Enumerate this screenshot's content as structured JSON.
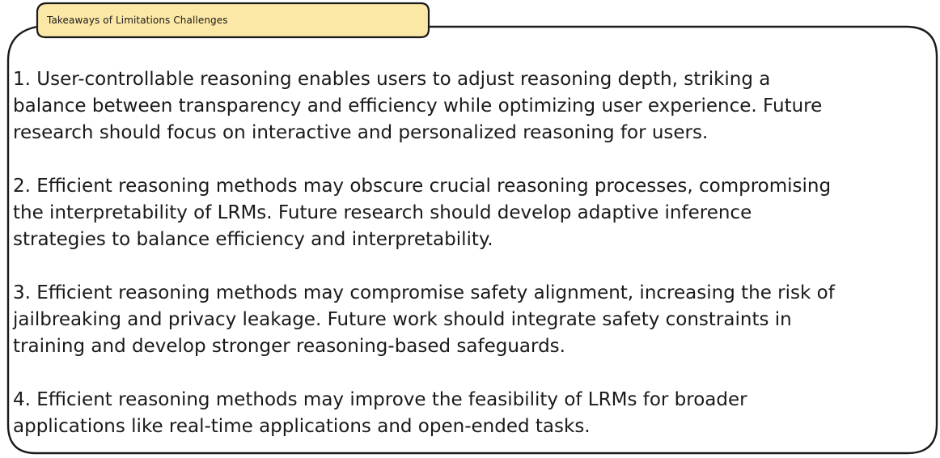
{
  "title": "Takeaways of Limitations Challenges",
  "items": [
    {
      "lines": [
        "1. User-controllable reasoning enables users to adjust reasoning depth, striking a",
        "balance between transparency and efficiency while optimizing user experience. Future",
        "research should focus on interactive and personalized reasoning for users."
      ]
    },
    {
      "lines": [
        "2. Efficient reasoning methods may obscure crucial reasoning processes, compromising",
        "the interpretability of LRMs. Future research should develop adaptive inference",
        "strategies to balance efficiency and interpretability."
      ]
    },
    {
      "lines": [
        "3. Efficient reasoning methods may compromise safety alignment, increasing the risk of",
        "jailbreaking and privacy leakage. Future work should integrate safety constraints in",
        "training and develop stronger reasoning-based safeguards."
      ]
    },
    {
      "lines": [
        "4. Efficient reasoning methods may improve the feasibility of LRMs for broader",
        "applications like real-time applications and open-ended tasks."
      ]
    }
  ],
  "colors": {
    "title_fill": "#fce8a6",
    "stroke": "#1a1a1a",
    "background": "#ffffff"
  }
}
